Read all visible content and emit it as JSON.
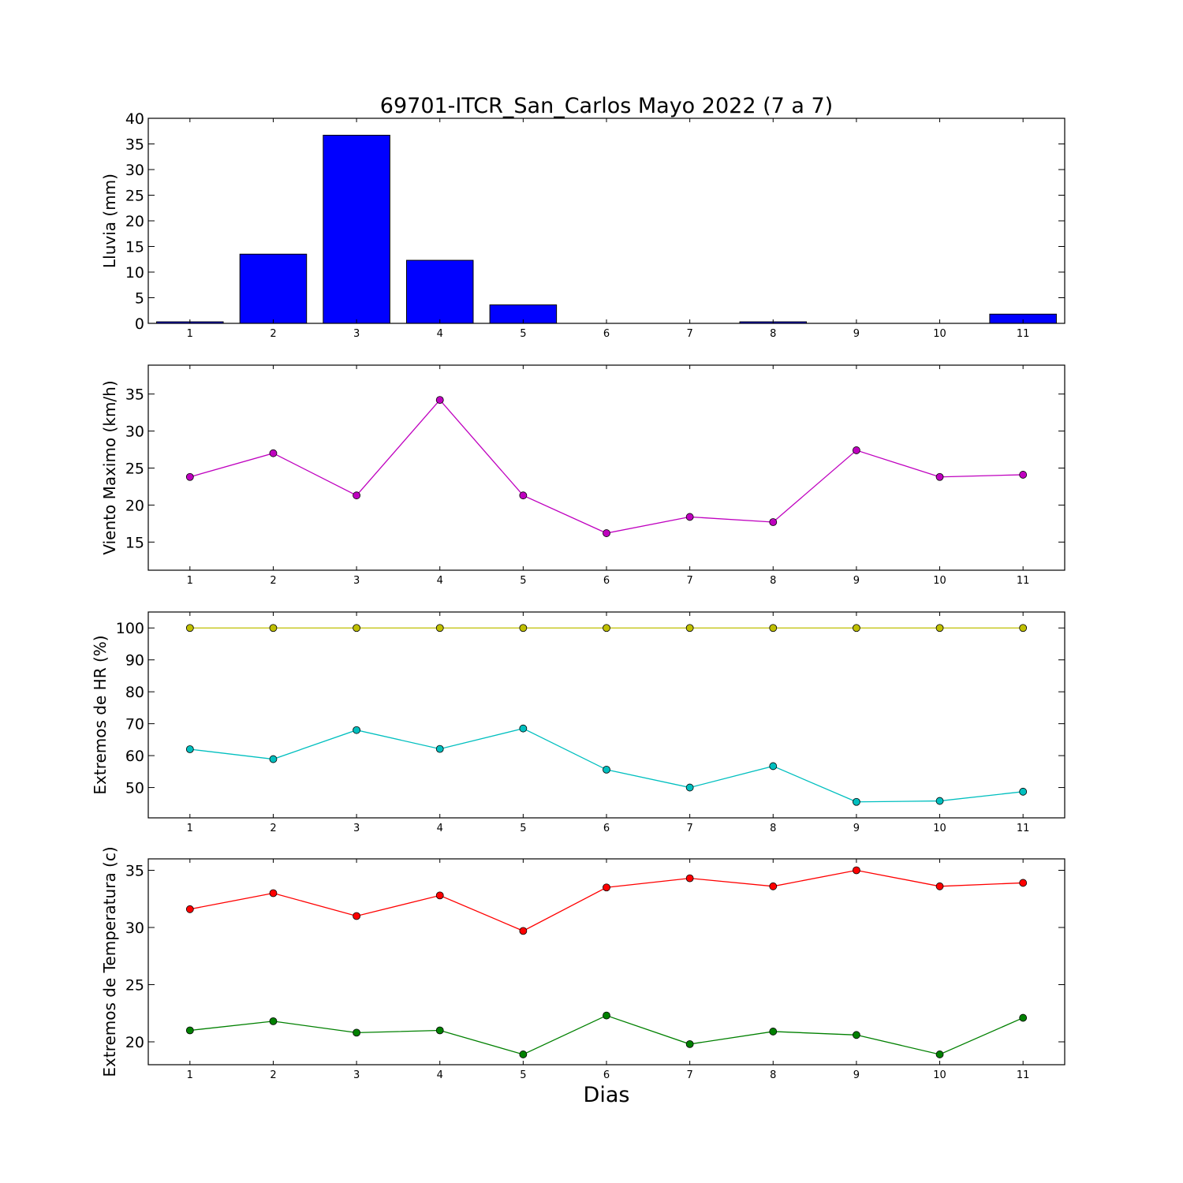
{
  "title": "69701-ITCR_San_Carlos Mayo 2022  (7 a 7)",
  "xlabel": "Dias",
  "chart_data": [
    {
      "type": "bar",
      "ylabel": "Lluvia (mm)",
      "ylim": [
        0,
        40
      ],
      "yticks": [
        0,
        5,
        10,
        15,
        20,
        25,
        30,
        35,
        40
      ],
      "categories": [
        1,
        2,
        3,
        4,
        5,
        6,
        7,
        8,
        9,
        10,
        11
      ],
      "series": [
        {
          "values": [
            0.3,
            13.5,
            36.7,
            12.3,
            3.6,
            0,
            0,
            0.3,
            0,
            0,
            1.8
          ],
          "color": "#0000ff"
        }
      ]
    },
    {
      "type": "line",
      "ylabel": "Viento Maximo (km/h)",
      "ylim": [
        11.2,
        38.9
      ],
      "yticks": [
        15,
        20,
        25,
        30,
        35
      ],
      "x": [
        1,
        2,
        3,
        4,
        5,
        6,
        7,
        8,
        9,
        10,
        11
      ],
      "series": [
        {
          "values": [
            23.8,
            27.0,
            21.3,
            34.2,
            21.3,
            16.2,
            18.4,
            17.7,
            27.4,
            23.8,
            24.1
          ],
          "color": "#bf00bf"
        }
      ]
    },
    {
      "type": "line",
      "ylabel": "Extremos de HR (%)",
      "ylim": [
        40.5,
        105
      ],
      "yticks": [
        50,
        60,
        70,
        80,
        90,
        100
      ],
      "x": [
        1,
        2,
        3,
        4,
        5,
        6,
        7,
        8,
        9,
        10,
        11
      ],
      "series": [
        {
          "values": [
            100,
            100,
            100,
            100,
            100,
            100,
            100,
            100,
            100,
            100,
            100
          ],
          "color": "#bfbf00"
        },
        {
          "values": [
            62.0,
            58.9,
            68.0,
            62.1,
            68.5,
            55.6,
            50.0,
            56.7,
            45.5,
            45.8,
            48.7
          ],
          "color": "#00bfbf"
        }
      ]
    },
    {
      "type": "line",
      "ylabel": "Extremos de Temperatura (c)",
      "ylim": [
        18,
        36
      ],
      "yticks": [
        20,
        25,
        30,
        35
      ],
      "x": [
        1,
        2,
        3,
        4,
        5,
        6,
        7,
        8,
        9,
        10,
        11
      ],
      "series": [
        {
          "values": [
            31.6,
            33.0,
            31.0,
            32.8,
            29.7,
            33.5,
            34.3,
            33.6,
            35.0,
            33.6,
            33.9
          ],
          "color": "#ff0000"
        },
        {
          "values": [
            21.0,
            21.8,
            20.8,
            21.0,
            18.9,
            22.3,
            19.8,
            20.9,
            20.6,
            18.9,
            22.1
          ],
          "color": "#008000"
        }
      ]
    }
  ]
}
